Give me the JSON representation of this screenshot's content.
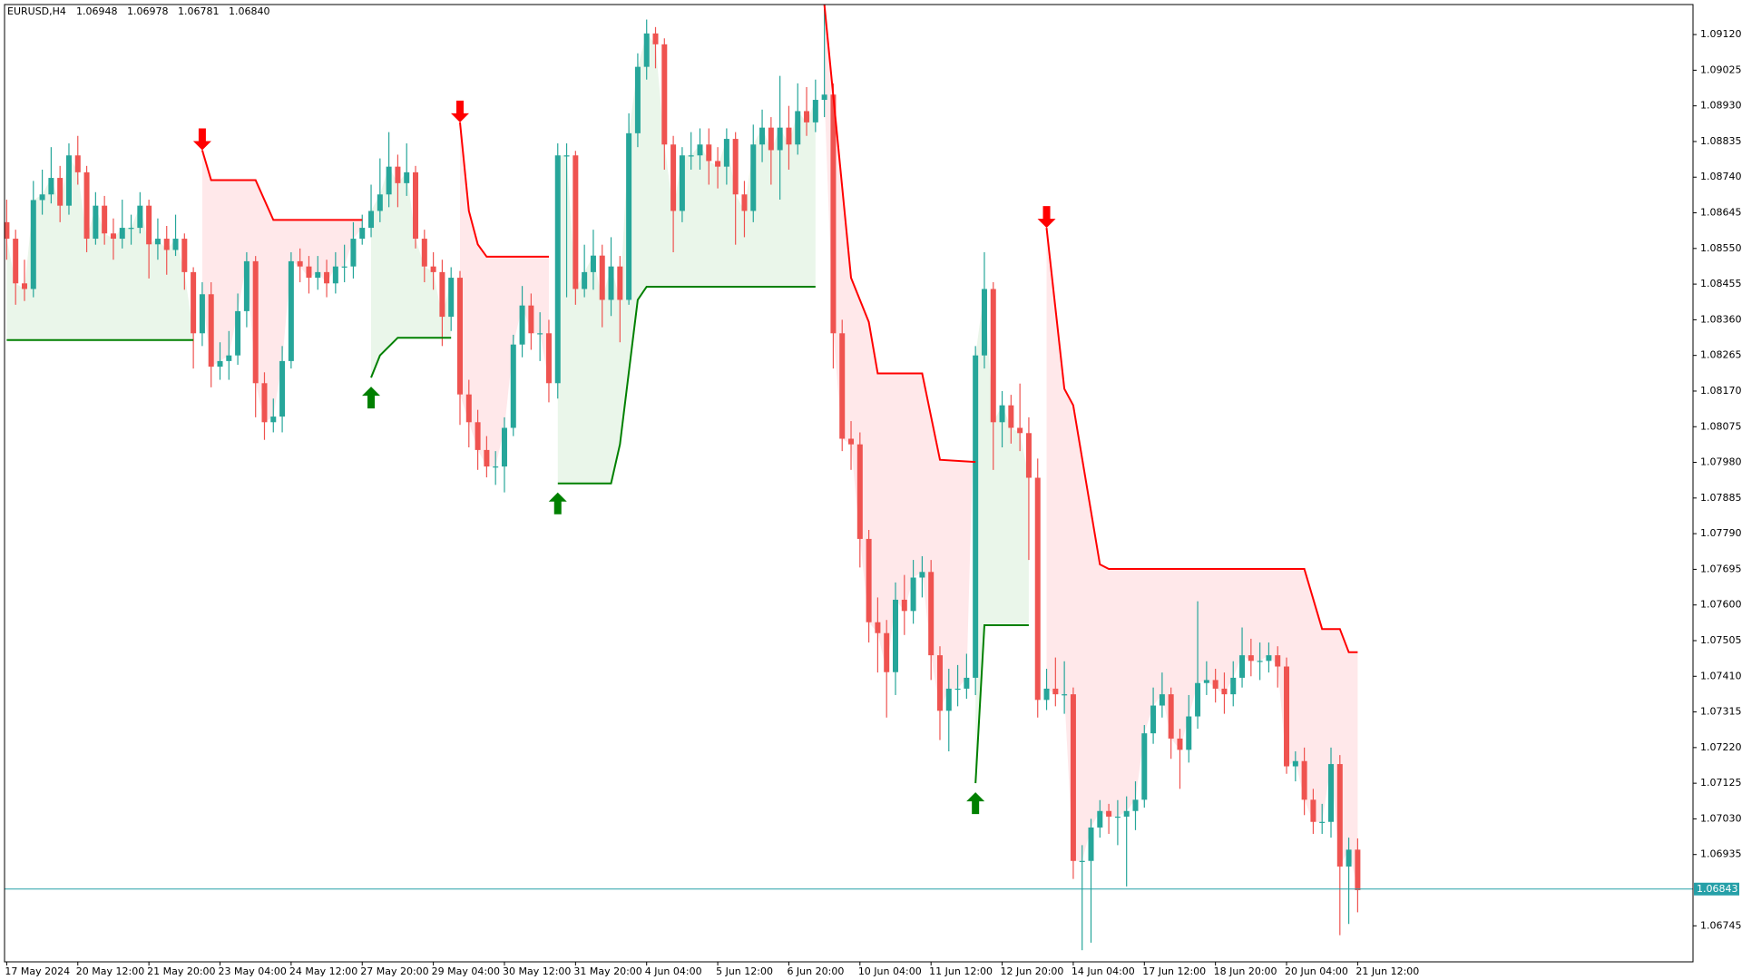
{
  "chart_data": {
    "type": "candlestick",
    "symbol": "EURUSD,H4",
    "header_values": [
      1.06948,
      1.06978,
      1.06781,
      1.0684
    ],
    "header_value_labels": [
      "1.06948",
      "1.06978",
      "1.06781",
      "1.06840"
    ],
    "up_color": "#26a69a",
    "down_color": "#ef5350",
    "categories": [
      "17 May 2024",
      null,
      null,
      null,
      null,
      null,
      null,
      null,
      "20 May 12:00",
      null,
      null,
      null,
      null,
      null,
      null,
      null,
      "21 May 20:00",
      null,
      null,
      null,
      null,
      null,
      null,
      null,
      "23 May 04:00",
      null,
      null,
      null,
      null,
      null,
      null,
      null,
      "24 May 12:00",
      null,
      null,
      null,
      null,
      null,
      null,
      null,
      "27 May 20:00",
      null,
      null,
      null,
      null,
      null,
      null,
      null,
      "29 May 04:00",
      null,
      null,
      null,
      null,
      null,
      null,
      null,
      "30 May 12:00",
      null,
      null,
      null,
      null,
      null,
      null,
      null,
      "31 May 20:00",
      null,
      null,
      null,
      null,
      null,
      null,
      null,
      "4 Jun 04:00",
      null,
      null,
      null,
      null,
      null,
      null,
      null,
      "5 Jun 12:00",
      null,
      null,
      null,
      null,
      null,
      null,
      null,
      "6 Jun 20:00",
      null,
      null,
      null,
      null,
      null,
      null,
      null,
      "10 Jun 04:00",
      null,
      null,
      null,
      null,
      null,
      null,
      null,
      "11 Jun 12:00",
      null,
      null,
      null,
      null,
      null,
      null,
      null,
      "12 Jun 20:00",
      null,
      null,
      null,
      null,
      null,
      null,
      null,
      "14 Jun 04:00",
      null,
      null,
      null,
      null,
      null,
      null,
      null,
      "17 Jun 12:00",
      null,
      null,
      null,
      null,
      null,
      null,
      null,
      "18 Jun 20:00",
      null,
      null,
      null,
      null,
      null,
      null,
      null,
      "20 Jun 04:00",
      null,
      null,
      null,
      null,
      null,
      null,
      null,
      "21 Jun 12:00"
    ],
    "open": [
      1.0862,
      1.08576,
      1.08457,
      1.08442,
      1.08679,
      1.08694,
      1.08738,
      1.08664,
      1.08798,
      1.08753,
      1.08576,
      1.08664,
      1.0859,
      1.08576,
      1.08605,
      1.08605,
      1.08664,
      1.08561,
      1.08576,
      1.08546,
      1.08576,
      1.08487,
      1.08324,
      1.08428,
      1.08235,
      1.0825,
      1.08265,
      1.08383,
      1.08516,
      1.08191,
      1.08087,
      1.08102,
      1.0825,
      1.08516,
      1.08502,
      1.08472,
      1.08487,
      1.08457,
      1.08502,
      1.08502,
      1.08576,
      1.08605,
      1.0865,
      1.08694,
      1.08768,
      1.08724,
      1.08753,
      1.08576,
      1.08502,
      1.08487,
      1.08368,
      1.08472,
      1.08161,
      1.08087,
      1.08013,
      1.07969,
      1.07969,
      1.08072,
      1.08294,
      1.08398,
      1.08324,
      1.08324,
      1.08191,
      1.08798,
      1.08798,
      1.08442,
      1.08487,
      1.08531,
      1.08413,
      1.08502,
      1.08413,
      1.08857,
      1.09034,
      1.09123,
      1.09094,
      1.08827,
      1.0865,
      1.08798,
      1.08798,
      1.08827,
      1.08783,
      1.08768,
      1.08842,
      1.08694,
      1.0865,
      1.08827,
      1.08872,
      1.08812,
      1.08872,
      1.08827,
      1.08916,
      1.08886,
      1.08946,
      1.0896,
      1.08324,
      1.08043,
      1.08028,
      1.07776,
      1.07554,
      1.07525,
      1.07421,
      1.07614,
      1.07584,
      1.07673,
      1.07688,
      1.07466,
      1.07318,
      1.07377,
      1.07377,
      1.07406,
      1.08265,
      1.08442,
      1.08087,
      1.08132,
      1.08072,
      1.08058,
      1.07939,
      1.07347,
      1.07377,
      1.07362,
      1.07362,
      1.06918,
      1.06918,
      1.07007,
      1.07051,
      1.07036,
      1.07036,
      1.07051,
      1.07081,
      1.07258,
      1.07332,
      1.07362,
      1.07244,
      1.07214,
      1.07303,
      1.07392,
      1.074,
      1.07377,
      1.07362,
      1.07406,
      1.07466,
      1.07451,
      1.07451,
      1.07466,
      1.07436,
      1.0717,
      1.07184,
      1.07081,
      1.07022,
      1.07022,
      1.07176,
      1.06903,
      1.06948
    ],
    "high": [
      1.0868,
      1.086,
      1.0852,
      1.0873,
      1.0876,
      1.0882,
      1.0877,
      1.0883,
      1.0885,
      1.0877,
      1.087,
      1.0869,
      1.0863,
      1.0868,
      1.0864,
      1.087,
      1.0868,
      1.0863,
      1.0861,
      1.0864,
      1.0859,
      1.085,
      1.0846,
      1.0846,
      1.083,
      1.0833,
      1.0843,
      1.0854,
      1.0853,
      1.0822,
      1.0815,
      1.0829,
      1.0854,
      1.0855,
      1.0853,
      1.0853,
      1.0852,
      1.0854,
      1.0856,
      1.0862,
      1.0864,
      1.0872,
      1.0879,
      1.0886,
      1.088,
      1.0883,
      1.0877,
      1.086,
      1.0854,
      1.0852,
      1.085,
      1.0849,
      1.082,
      1.0812,
      1.0805,
      1.0801,
      1.081,
      1.0832,
      1.0845,
      1.0843,
      1.0838,
      1.0836,
      1.0883,
      1.0883,
      1.0881,
      1.0856,
      1.086,
      1.0856,
      1.0858,
      1.0853,
      1.0891,
      1.0907,
      1.0916,
      1.0914,
      1.0911,
      1.0885,
      1.0882,
      1.0886,
      1.0887,
      1.0887,
      1.0882,
      1.0887,
      1.0886,
      1.0873,
      1.0888,
      1.0892,
      1.089,
      1.0901,
      1.0893,
      1.0899,
      1.0898,
      1.09,
      1.092,
      1.0899,
      1.0836,
      1.0809,
      1.0806,
      1.078,
      1.0762,
      1.0756,
      1.0766,
      1.0768,
      1.0772,
      1.0773,
      1.0772,
      1.0749,
      1.0743,
      1.0744,
      1.0747,
      1.0829,
      1.0854,
      1.0846,
      1.0817,
      1.0816,
      1.0819,
      1.081,
      1.0799,
      1.0743,
      1.0746,
      1.0745,
      1.0738,
      1.0696,
      1.0703,
      1.0708,
      1.0707,
      1.0708,
      1.0709,
      1.0713,
      1.0728,
      1.0738,
      1.0742,
      1.0738,
      1.0727,
      1.0736,
      1.0761,
      1.0745,
      1.0743,
      1.0742,
      1.0745,
      1.0754,
      1.0751,
      1.075,
      1.075,
      1.0749,
      1.0746,
      1.0721,
      1.0722,
      1.0711,
      1.0707,
      1.0722,
      1.072,
      1.0698,
      1.06978
    ],
    "low": [
      1.0852,
      1.084,
      1.0841,
      1.0842,
      1.0864,
      1.0867,
      1.0862,
      1.0864,
      1.0872,
      1.0854,
      1.0856,
      1.0856,
      1.0852,
      1.0855,
      1.0856,
      1.0859,
      1.0847,
      1.0852,
      1.0848,
      1.0853,
      1.0844,
      1.0823,
      1.0829,
      1.0818,
      1.082,
      1.082,
      1.0824,
      1.0834,
      1.081,
      1.0804,
      1.0806,
      1.0806,
      1.0823,
      1.0846,
      1.0843,
      1.0844,
      1.0842,
      1.0843,
      1.0846,
      1.0847,
      1.0856,
      1.0858,
      1.0862,
      1.0866,
      1.0866,
      1.0869,
      1.0855,
      1.0846,
      1.0844,
      1.0829,
      1.0833,
      1.0808,
      1.0802,
      1.0796,
      1.0794,
      1.0792,
      1.079,
      1.0805,
      1.0826,
      1.0828,
      1.0825,
      1.0814,
      1.0815,
      1.0842,
      1.084,
      1.0842,
      1.0844,
      1.0834,
      1.0837,
      1.083,
      1.084,
      1.0882,
      1.09,
      1.0903,
      1.0876,
      1.0854,
      1.0862,
      1.0876,
      1.0876,
      1.0872,
      1.0871,
      1.0872,
      1.0856,
      1.0858,
      1.0862,
      1.0878,
      1.0872,
      1.0868,
      1.0876,
      1.088,
      1.0885,
      1.0886,
      1.089,
      1.0823,
      1.0801,
      1.0796,
      1.077,
      1.075,
      1.0742,
      1.073,
      1.0736,
      1.0752,
      1.0755,
      1.0762,
      1.074,
      1.0724,
      1.0721,
      1.0733,
      1.0735,
      1.0736,
      1.0823,
      1.0796,
      1.0802,
      1.0803,
      1.0801,
      1.0772,
      1.073,
      1.0732,
      1.0733,
      1.0731,
      1.0687,
      1.0668,
      1.067,
      1.0698,
      1.0699,
      1.0696,
      1.0685,
      1.07,
      1.0706,
      1.0723,
      1.073,
      1.0719,
      1.0711,
      1.0718,
      1.0727,
      1.0736,
      1.0734,
      1.0731,
      1.0733,
      1.0738,
      1.0741,
      1.074,
      1.0742,
      1.0738,
      1.0715,
      1.0713,
      1.0704,
      1.0699,
      1.0699,
      1.0698,
      1.0672,
      1.0675,
      1.06781
    ],
    "close": [
      1.08576,
      1.08457,
      1.08442,
      1.08679,
      1.08694,
      1.08738,
      1.08664,
      1.08798,
      1.08753,
      1.08576,
      1.08664,
      1.0859,
      1.08576,
      1.08605,
      1.08605,
      1.08664,
      1.08561,
      1.08576,
      1.08546,
      1.08576,
      1.08487,
      1.08324,
      1.08428,
      1.08235,
      1.0825,
      1.08265,
      1.08383,
      1.08516,
      1.08191,
      1.08087,
      1.08102,
      1.0825,
      1.08516,
      1.08502,
      1.08472,
      1.08487,
      1.08457,
      1.08502,
      1.08502,
      1.08576,
      1.08605,
      1.0865,
      1.08694,
      1.08768,
      1.08724,
      1.08753,
      1.08576,
      1.08502,
      1.08487,
      1.08368,
      1.08472,
      1.08161,
      1.08087,
      1.08013,
      1.07969,
      1.07969,
      1.08072,
      1.08294,
      1.08398,
      1.08324,
      1.08324,
      1.08191,
      1.08798,
      1.08798,
      1.08442,
      1.08487,
      1.08531,
      1.08413,
      1.08502,
      1.08413,
      1.08857,
      1.09034,
      1.09123,
      1.09094,
      1.08827,
      1.0865,
      1.08798,
      1.08798,
      1.08827,
      1.08783,
      1.08768,
      1.08842,
      1.08694,
      1.0865,
      1.08827,
      1.08872,
      1.08812,
      1.08872,
      1.08827,
      1.08916,
      1.08886,
      1.08946,
      1.0896,
      1.08324,
      1.08043,
      1.08028,
      1.07776,
      1.07554,
      1.07525,
      1.07421,
      1.07614,
      1.07584,
      1.07673,
      1.07688,
      1.07466,
      1.07318,
      1.07377,
      1.07377,
      1.07406,
      1.08265,
      1.08442,
      1.08087,
      1.08132,
      1.08072,
      1.08058,
      1.07939,
      1.07347,
      1.07377,
      1.07362,
      1.07362,
      1.06918,
      1.06918,
      1.07007,
      1.07051,
      1.07036,
      1.07036,
      1.07051,
      1.07081,
      1.07258,
      1.07332,
      1.07362,
      1.07244,
      1.07214,
      1.07303,
      1.07392,
      1.074,
      1.07377,
      1.07362,
      1.07406,
      1.07466,
      1.07451,
      1.07451,
      1.07466,
      1.07436,
      1.0717,
      1.07184,
      1.07081,
      1.07022,
      1.07022,
      1.07176,
      1.06903,
      1.06948,
      1.0684
    ],
    "bands": [
      {
        "color": "#008000",
        "fill": "#eaf6ea",
        "x": [
          0,
          21
        ],
        "values": [
          1.08306,
          1.08306
        ]
      },
      {
        "color": "#ff0000",
        "fill": "#ffe8ea",
        "arrow": "down",
        "x": [
          22,
          23,
          28,
          30,
          40
        ],
        "values": [
          1.08812,
          1.08732,
          1.08732,
          1.08626,
          1.08626
        ]
      },
      {
        "color": "#008000",
        "fill": "#eaf6ea",
        "arrow": "up",
        "x": [
          41,
          42,
          44,
          50
        ],
        "values": [
          1.08206,
          1.08265,
          1.08312,
          1.08312
        ]
      },
      {
        "color": "#ff0000",
        "fill": "#ffe8ea",
        "arrow": "down",
        "x": [
          51,
          52,
          53,
          54,
          61
        ],
        "values": [
          1.08886,
          1.0865,
          1.08561,
          1.08528,
          1.08528
        ]
      },
      {
        "color": "#008000",
        "fill": "#eaf6ea",
        "arrow": "up",
        "x": [
          62,
          68,
          69,
          71,
          72,
          91
        ],
        "values": [
          1.07924,
          1.07924,
          1.08028,
          1.08413,
          1.08448,
          1.08448
        ]
      },
      {
        "color": "#ff0000",
        "fill": "#ffe8ea",
        "x": [
          92,
          95,
          97,
          98,
          103,
          105,
          109
        ],
        "values": [
          1.092,
          1.08472,
          1.08354,
          1.08217,
          1.08217,
          1.07987,
          1.07981
        ]
      },
      {
        "color": "#008000",
        "fill": "#eaf6ea",
        "arrow": "up",
        "x": [
          109,
          110,
          115
        ],
        "values": [
          1.07125,
          1.07546,
          1.07546
        ]
      },
      {
        "color": "#ff0000",
        "fill": "#ffe8ea",
        "arrow": "down",
        "x": [
          117,
          119,
          120,
          123,
          124,
          146,
          148,
          150,
          151,
          152
        ],
        "values": [
          1.08605,
          1.08176,
          1.08132,
          1.07708,
          1.07696,
          1.07696,
          1.07536,
          1.07536,
          1.07474,
          1.07474
        ]
      }
    ],
    "price_line": {
      "value": 1.06843,
      "color": "#26a0a8"
    },
    "ylim": [
      1.06649,
      1.092
    ],
    "yticks": [
      {
        "value": 1.0912,
        "label": "1.09120"
      },
      1.09025,
      {
        "value": 1.0893,
        "label": "1.08930"
      },
      1.08835,
      {
        "value": 1.0874,
        "label": "1.08740"
      },
      1.08645,
      {
        "value": 1.0855,
        "label": "1.08550"
      },
      1.08455,
      {
        "value": 1.0836,
        "label": "1.08360"
      },
      1.08265,
      {
        "value": 1.0817,
        "label": "1.08170"
      },
      1.08075,
      {
        "value": 1.0798,
        "label": "1.07980"
      },
      1.07885,
      {
        "value": 1.0779,
        "label": "1.07790"
      },
      1.07695,
      {
        "value": 1.076,
        "label": "1.07600"
      },
      1.07505,
      {
        "value": 1.0741,
        "label": "1.07410"
      },
      1.07315,
      {
        "value": 1.0722,
        "label": "1.07220"
      },
      1.07125,
      {
        "value": 1.0703,
        "label": "1.07030"
      },
      1.06935,
      1.06745
    ]
  }
}
